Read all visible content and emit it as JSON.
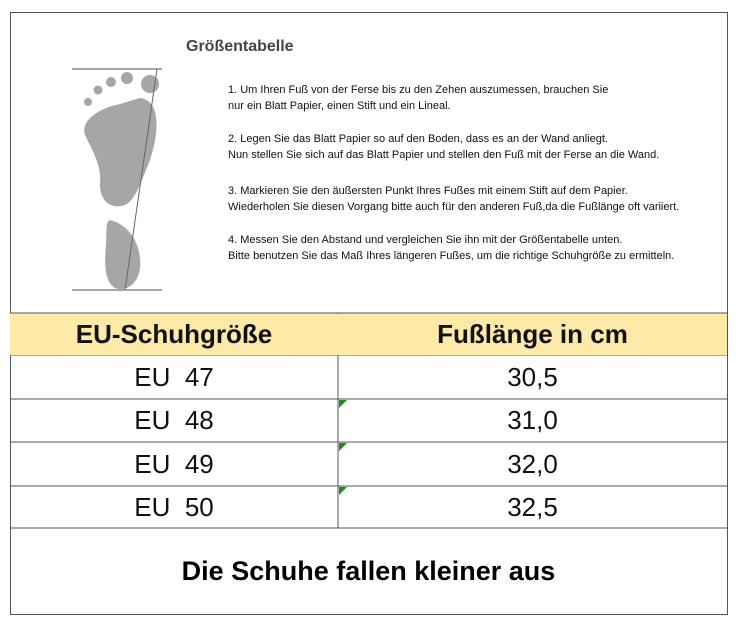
{
  "header": {
    "title": "Größentabelle"
  },
  "instructions": [
    [
      "1. Um Ihren Fuß von der Ferse bis zu den Zehen auszumessen, brauchen Sie",
      "nur ein Blatt Papier, einen Stift und ein Lineal."
    ],
    [
      "2. Legen Sie das Blatt Papier so auf den Boden, dass es an der Wand anliegt.",
      "Nun stellen Sie sich auf das Blatt Papier und stellen den Fuß mit der Ferse an die Wand."
    ],
    [
      "3. Markieren Sie den äußersten Punkt Ihres Fußes mit einem Stift auf dem Papier.",
      "Wiederholen Sie diesen Vorgang bitte auch für den anderen Fuß,da die Fußlänge oft variiert."
    ],
    [
      "4. Messen Sie den Abstand und vergleichen Sie ihn mit der Größentabelle unten.",
      "Bitte benutzen Sie das Maß Ihres längeren Fußes, um die richtige Schuhgröße zu ermitteln."
    ]
  ],
  "table": {
    "columns": [
      "EU-Schuhgröße",
      "Fußlänge in cm"
    ],
    "rows": [
      [
        "EU  47",
        "30,5"
      ],
      [
        "EU  48",
        "31,0"
      ],
      [
        "EU  49",
        "32,0"
      ],
      [
        "EU  50",
        "32,5"
      ]
    ]
  },
  "footer": "Die Schuhe fallen kleiner aus"
}
